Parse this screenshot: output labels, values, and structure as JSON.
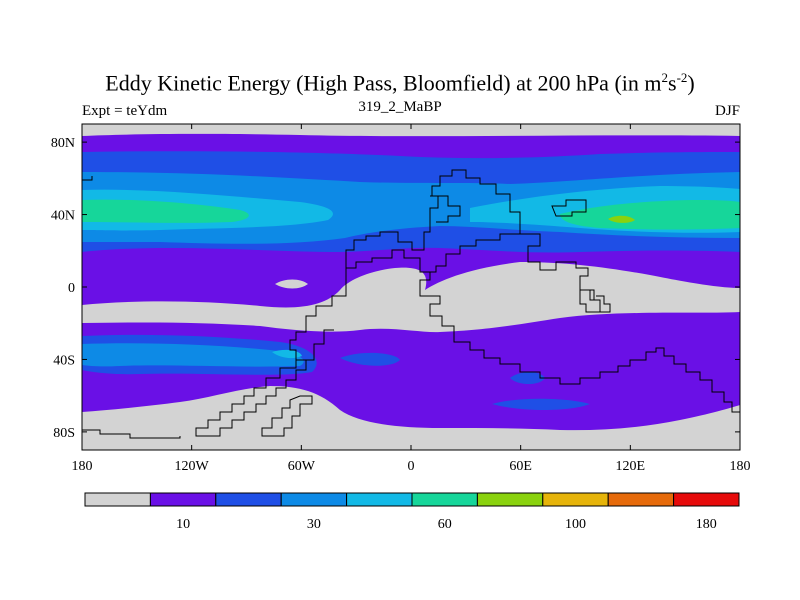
{
  "title": {
    "main": "Eddy Kinetic Energy (High Pass, Bloomfield) at 200 hPa (in m",
    "sup1": "2",
    "mid": "s",
    "sup2": "-2",
    "end": ")"
  },
  "subtitle": {
    "left": "Expt = teYdm",
    "center": "319_2_MaBP",
    "right": "DJF"
  },
  "map": {
    "lat_range": [
      -90,
      90
    ],
    "lon_range": [
      -180,
      180
    ],
    "lat_ticks": [
      {
        "value": 80,
        "label": "80N"
      },
      {
        "value": 40,
        "label": "40N"
      },
      {
        "value": 0,
        "label": "0"
      },
      {
        "value": -40,
        "label": "40S"
      },
      {
        "value": -80,
        "label": "80S"
      }
    ],
    "lon_ticks": [
      {
        "value": -180,
        "label": "180"
      },
      {
        "value": -120,
        "label": "120W"
      },
      {
        "value": -60,
        "label": "60W"
      },
      {
        "value": 0,
        "label": "0"
      },
      {
        "value": 60,
        "label": "60E"
      },
      {
        "value": 120,
        "label": "120E"
      },
      {
        "value": 180,
        "label": "180"
      }
    ]
  },
  "colorbar": {
    "colors": [
      "#d3d3d3",
      "#6a10e6",
      "#1f4fe6",
      "#0d8ae6",
      "#12b9e6",
      "#16d69a",
      "#8ad20e",
      "#e6b40a",
      "#e66a0a",
      "#e60a0a"
    ],
    "labels": [
      {
        "index": 1,
        "text": "10"
      },
      {
        "index": 3,
        "text": "30"
      },
      {
        "index": 5,
        "text": "60"
      },
      {
        "index": 7,
        "text": "100"
      },
      {
        "index": 9,
        "text": "180"
      }
    ]
  }
}
